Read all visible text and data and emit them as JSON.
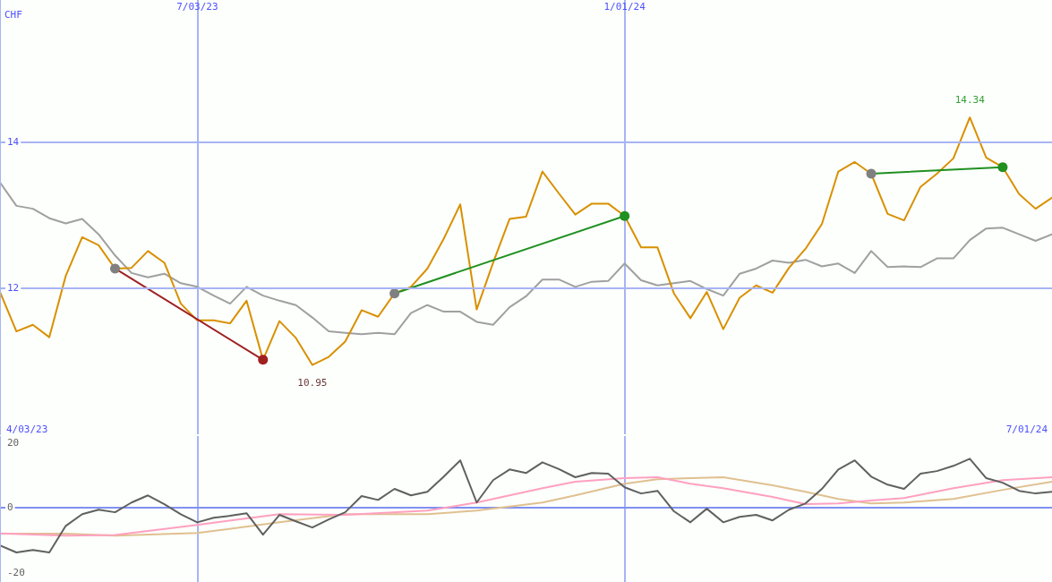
{
  "chart_data": [
    {
      "type": "line",
      "ylabel": "CHF",
      "x": [
        "2023-04-10",
        "2023-04-17",
        "2023-04-24",
        "2023-05-01",
        "2023-05-08",
        "2023-05-15",
        "2023-05-22",
        "2023-05-29",
        "2023-06-05",
        "2023-06-12",
        "2023-06-19",
        "2023-06-26",
        "2023-07-03",
        "2023-07-10",
        "2023-07-17",
        "2023-07-24",
        "2023-07-31",
        "2023-08-07",
        "2023-08-14",
        "2023-08-21",
        "2023-08-28",
        "2023-09-04",
        "2023-09-11",
        "2023-09-18",
        "2023-09-25",
        "2023-10-02",
        "2023-10-09",
        "2023-10-16",
        "2023-10-23",
        "2023-10-30",
        "2023-11-06",
        "2023-11-13",
        "2023-11-20",
        "2023-11-27",
        "2023-12-04",
        "2023-12-11",
        "2023-12-18",
        "2023-12-25",
        "2024-01-01",
        "2024-01-08",
        "2024-01-15",
        "2024-01-22",
        "2024-01-29",
        "2024-02-05",
        "2024-02-12",
        "2024-02-19",
        "2024-02-26",
        "2024-03-04",
        "2024-03-11",
        "2024-03-18",
        "2024-03-25",
        "2024-04-01",
        "2024-04-08",
        "2024-04-15",
        "2024-04-22",
        "2024-04-29",
        "2024-05-06",
        "2024-05-13",
        "2024-05-20",
        "2024-05-27",
        "2024-06-03",
        "2024-06-10",
        "2024-06-17",
        "2024-06-24",
        "2024-07-01"
      ],
      "series": [
        {
          "color": "#a0a0a0",
          "values": [
            13.45,
            13.13,
            13.09,
            12.96,
            12.89,
            12.95,
            12.74,
            12.45,
            12.21,
            12.15,
            12.2,
            12.07,
            12.02,
            11.9,
            11.79,
            12.02,
            11.9,
            11.83,
            11.77,
            11.6,
            11.41,
            11.39,
            11.37,
            11.39,
            11.37,
            11.66,
            11.77,
            11.68,
            11.68,
            11.54,
            11.5,
            11.74,
            11.89,
            12.12,
            12.12,
            12.02,
            12.09,
            12.1,
            12.34,
            12.11,
            12.04,
            12.07,
            12.1,
            11.99,
            11.9,
            12.2,
            12.27,
            12.38,
            12.35,
            12.39,
            12.3,
            12.34,
            12.21,
            12.51,
            12.29,
            12.3,
            12.29,
            12.41,
            12.41,
            12.66,
            12.82,
            12.83,
            12.74,
            12.65,
            12.74
          ]
        },
        {
          "color": "#d99000",
          "values": [
            11.95,
            11.41,
            11.5,
            11.33,
            12.17,
            12.7,
            12.59,
            12.27,
            12.28,
            12.51,
            12.35,
            11.79,
            11.56,
            11.56,
            11.52,
            11.83,
            11.02,
            11.55,
            11.32,
            10.95,
            11.06,
            11.27,
            11.7,
            11.61,
            11.93,
            12.02,
            12.27,
            12.68,
            13.15,
            11.71,
            12.35,
            12.95,
            12.98,
            13.6,
            13.3,
            13.01,
            13.16,
            13.16,
            12.99,
            12.56,
            12.56,
            11.93,
            11.59,
            11.95,
            11.44,
            11.87,
            12.04,
            11.94,
            12.28,
            12.54,
            12.88,
            13.6,
            13.73,
            13.57,
            13.02,
            12.93,
            13.39,
            13.57,
            13.78,
            14.34,
            13.79,
            13.66,
            13.29,
            13.09,
            13.24
          ]
        },
        {
          "x": [
            "2023-05-29",
            "2023-07-31"
          ],
          "values": [
            12.27,
            11.02
          ],
          "color": "#a02020",
          "colors": [
            "#808080",
            "#a02020"
          ],
          "marker": "circle"
        },
        {
          "x": [
            "2023-09-25",
            "2024-01-01"
          ],
          "values": [
            11.93,
            12.99
          ],
          "color": "#209020",
          "colors": [
            "#808080",
            "#209020"
          ],
          "marker": "circle"
        },
        {
          "x": [
            "2024-04-15",
            "2024-06-10"
          ],
          "values": [
            13.57,
            13.66
          ],
          "color": "#209020",
          "colors": [
            "#808080",
            "#209020"
          ],
          "marker": "circle"
        }
      ],
      "xlim": [
        "2023-04-10",
        "2024-07-01"
      ],
      "xticks": [
        {
          "value": "2023-07-03",
          "label": "7/03/23"
        },
        {
          "value": "2024-01-01",
          "label": "1/01/24"
        }
      ],
      "ylim": [
        10,
        15.95
      ],
      "yticks": [
        12,
        14
      ],
      "grid": true,
      "marker": "none",
      "annotations": [
        {
          "text": "10.95",
          "x": "2023-08-21",
          "y": 10.95
        },
        {
          "text": "14.34",
          "x": "2024-05-27",
          "y": 14.34
        },
        "4/03/23",
        "7/01/24"
      ]
    },
    {
      "type": "line",
      "x": [
        "2023-04-10",
        "2023-04-17",
        "2023-04-24",
        "2023-05-01",
        "2023-05-08",
        "2023-05-15",
        "2023-05-22",
        "2023-05-29",
        "2023-06-05",
        "2023-06-12",
        "2023-06-19",
        "2023-06-26",
        "2023-07-03",
        "2023-07-10",
        "2023-07-17",
        "2023-07-24",
        "2023-07-31",
        "2023-08-07",
        "2023-08-14",
        "2023-08-21",
        "2023-08-28",
        "2023-09-04",
        "2023-09-11",
        "2023-09-18",
        "2023-09-25",
        "2023-10-02",
        "2023-10-09",
        "2023-10-16",
        "2023-10-23",
        "2023-10-30",
        "2023-11-06",
        "2023-11-13",
        "2023-11-20",
        "2023-11-27",
        "2023-12-04",
        "2023-12-11",
        "2023-12-18",
        "2023-12-25",
        "2024-01-01",
        "2024-01-08",
        "2024-01-15",
        "2024-01-22",
        "2024-01-29",
        "2024-02-05",
        "2024-02-12",
        "2024-02-19",
        "2024-02-26",
        "2024-03-04",
        "2024-03-11",
        "2024-03-18",
        "2024-03-25",
        "2024-04-01",
        "2024-04-08",
        "2024-04-15",
        "2024-04-22",
        "2024-04-29",
        "2024-05-06",
        "2024-05-13",
        "2024-05-20",
        "2024-05-27",
        "2024-06-03",
        "2024-06-10",
        "2024-06-17",
        "2024-06-24",
        "2024-07-01"
      ],
      "series": [
        {
          "x": [
            "2023-04-10",
            "2023-05-08",
            "2023-05-29",
            "2023-07-03",
            "2023-08-07",
            "2023-09-04",
            "2023-10-09",
            "2023-10-30",
            "2023-11-27",
            "2023-12-11",
            "2024-01-01",
            "2024-01-15",
            "2024-01-29",
            "2024-02-12",
            "2024-03-04",
            "2024-03-18",
            "2024-04-01",
            "2024-04-15",
            "2024-04-29",
            "2024-05-20",
            "2024-06-10",
            "2024-07-01"
          ],
          "color": "#e0c090",
          "values": [
            -8.1,
            -8.1,
            -8.7,
            -7.9,
            -4.6,
            -2.1,
            -2.1,
            -1.0,
            1.5,
            3.7,
            7.3,
            8.7,
            9.0,
            9.3,
            6.8,
            4.8,
            2.6,
            1.2,
            1.5,
            2.6,
            5.4,
            7.9
          ]
        },
        {
          "x": [
            "2023-04-10",
            "2023-05-08",
            "2023-05-29",
            "2023-07-03",
            "2023-08-07",
            "2023-09-04",
            "2023-10-09",
            "2023-10-30",
            "2023-11-27",
            "2023-12-11",
            "2024-01-01",
            "2024-01-15",
            "2024-01-29",
            "2024-02-12",
            "2024-03-04",
            "2024-03-18",
            "2024-04-01",
            "2024-04-15",
            "2024-04-29",
            "2024-05-20",
            "2024-06-10",
            "2024-07-01"
          ],
          "color": "#ffa0c0",
          "values": [
            -8.0,
            -8.7,
            -8.5,
            -5.4,
            -2.1,
            -2.3,
            -1.0,
            1.5,
            5.9,
            7.9,
            9.0,
            9.3,
            7.3,
            5.9,
            3.2,
            1.0,
            1.2,
            2.1,
            2.9,
            5.9,
            8.4,
            9.3
          ]
        },
        {
          "color": "#606060",
          "values": [
            -11.7,
            -13.9,
            -13.1,
            -13.9,
            -5.7,
            -2.1,
            -0.7,
            -1.5,
            1.5,
            3.7,
            1.0,
            -2.1,
            -4.6,
            -3.2,
            -2.6,
            -1.8,
            -8.4,
            -2.3,
            -4.3,
            -6.2,
            -3.7,
            -1.5,
            3.5,
            2.3,
            5.7,
            3.7,
            4.8,
            9.5,
            14.5,
            1.5,
            8.4,
            11.7,
            10.6,
            13.9,
            11.8,
            9.3,
            10.6,
            10.4,
            6.2,
            4.3,
            5.1,
            -1.2,
            -4.6,
            -0.4,
            -4.6,
            -2.9,
            -2.3,
            -4.0,
            -0.7,
            1.2,
            5.7,
            11.7,
            14.5,
            9.5,
            7.0,
            5.7,
            10.4,
            11.2,
            12.8,
            15.0,
            9.0,
            7.6,
            5.1,
            4.3,
            4.8
          ]
        }
      ],
      "xlim": [
        "2023-04-10",
        "2024-07-01"
      ],
      "xticks": [
        {
          "value": "2023-07-03",
          "label": null
        },
        {
          "value": "2024-01-01",
          "label": null
        }
      ],
      "ylim": [
        -23,
        22
      ],
      "yticks": [
        -20,
        0,
        20
      ],
      "grid": "x",
      "marker": "none",
      "tick_labels": "y",
      "ref_lines": [
        {
          "axis": "y",
          "value": 0,
          "color": "#8090f0"
        }
      ]
    }
  ]
}
